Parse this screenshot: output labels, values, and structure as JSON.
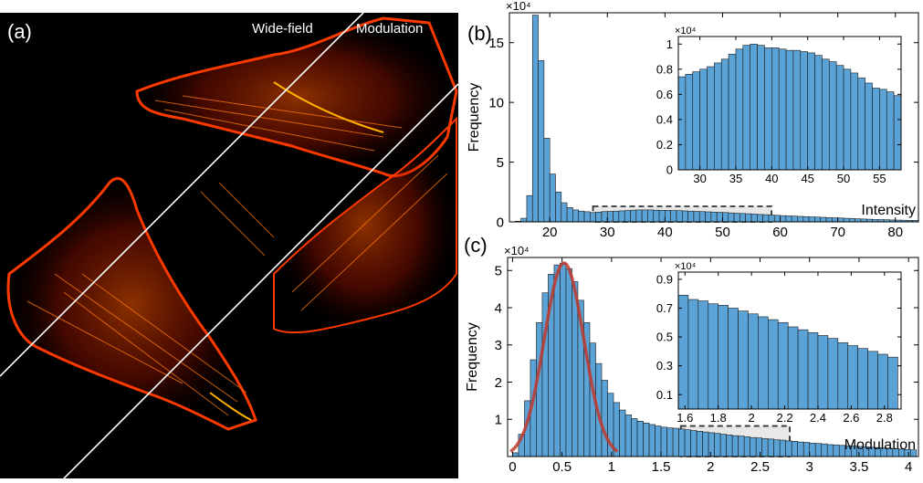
{
  "panels": {
    "a": {
      "label": "(a)",
      "wide_label": "Wide-field",
      "mod_label": "Modulation"
    },
    "b": {
      "label": "(b)"
    },
    "c": {
      "label": "(c)"
    }
  },
  "colors": {
    "bar": "#5ba3d6",
    "bar_edge": "#1a1a1a",
    "fit": "#c0392b",
    "axis": "#000000",
    "box": "#333333",
    "highlight": "#e8e8e8",
    "image_bg": "#000000",
    "cell": "#ff2a00",
    "cell_bright": "#ffb000"
  },
  "chart_data": [
    {
      "id": "b-main",
      "type": "bar",
      "xlabel": "Intensity",
      "ylabel": "Frequency",
      "multiplier": "×10⁴",
      "xlim": [
        13,
        84
      ],
      "ylim": [
        0,
        17.5
      ],
      "xticks": [
        20,
        30,
        40,
        50,
        60,
        70,
        80
      ],
      "yticks": [
        0,
        5,
        10,
        15
      ],
      "bin_width": 1,
      "x": [
        13,
        14,
        15,
        16,
        17,
        18,
        19,
        20,
        21,
        22,
        23,
        24,
        25,
        26,
        27,
        28,
        29,
        30,
        31,
        32,
        33,
        34,
        35,
        36,
        37,
        38,
        39,
        40,
        41,
        42,
        43,
        44,
        45,
        46,
        47,
        48,
        49,
        50,
        51,
        52,
        53,
        54,
        55,
        56,
        57,
        58,
        59,
        60,
        61,
        62,
        63,
        64,
        65,
        66,
        67,
        68,
        69,
        70,
        71,
        72,
        73,
        74,
        75,
        76,
        77,
        78,
        79,
        80,
        81,
        82,
        83
      ],
      "values": [
        0.01,
        0.05,
        0.3,
        2.2,
        17.3,
        13.5,
        7.0,
        4.0,
        2.5,
        1.6,
        1.2,
        1.0,
        0.9,
        0.85,
        0.78,
        0.82,
        0.86,
        0.88,
        0.9,
        0.92,
        0.95,
        0.98,
        1.0,
        1.0,
        1.0,
        0.98,
        0.97,
        0.96,
        0.95,
        0.94,
        0.92,
        0.9,
        0.88,
        0.86,
        0.84,
        0.82,
        0.8,
        0.78,
        0.75,
        0.72,
        0.7,
        0.68,
        0.65,
        0.62,
        0.6,
        0.57,
        0.55,
        0.52,
        0.5,
        0.48,
        0.46,
        0.44,
        0.42,
        0.4,
        0.38,
        0.36,
        0.34,
        0.32,
        0.3,
        0.28,
        0.26,
        0.24,
        0.22,
        0.2,
        0.19,
        0.18,
        0.16,
        0.15,
        0.14,
        0.13,
        0.12
      ],
      "highlight": {
        "x": [
          27.5,
          58.5
        ],
        "y": [
          0,
          1.3
        ]
      }
    },
    {
      "id": "b-inset",
      "type": "bar",
      "xlabel": "",
      "ylabel": "",
      "multiplier": "×10⁴",
      "xlim": [
        27,
        58
      ],
      "ylim": [
        0,
        1.06
      ],
      "xticks": [
        30,
        35,
        40,
        45,
        50,
        55
      ],
      "yticks": [
        0,
        0.2,
        0.4,
        0.6,
        0.8,
        1
      ],
      "bin_width": 1,
      "x": [
        27,
        28,
        29,
        30,
        31,
        32,
        33,
        34,
        35,
        36,
        37,
        38,
        39,
        40,
        41,
        42,
        43,
        44,
        45,
        46,
        47,
        48,
        49,
        50,
        51,
        52,
        53,
        54,
        55,
        56,
        57
      ],
      "values": [
        0.74,
        0.76,
        0.78,
        0.8,
        0.82,
        0.85,
        0.88,
        0.92,
        0.96,
        0.99,
        1.0,
        0.99,
        0.97,
        0.97,
        0.96,
        0.95,
        0.95,
        0.94,
        0.93,
        0.91,
        0.88,
        0.86,
        0.83,
        0.8,
        0.77,
        0.73,
        0.69,
        0.65,
        0.64,
        0.62,
        0.59
      ]
    },
    {
      "id": "c-main",
      "type": "bar",
      "xlabel": "Modulation",
      "ylabel": "Frequency",
      "multiplier": "×10⁴",
      "xlim": [
        -0.05,
        4.1
      ],
      "ylim": [
        0,
        5.35
      ],
      "xticks": [
        0,
        0.5,
        1,
        1.5,
        2,
        2.5,
        3,
        3.5,
        4
      ],
      "yticks": [
        1,
        2,
        3,
        4,
        5
      ],
      "bin_width": 0.06,
      "x": [
        0,
        0.06,
        0.12,
        0.18,
        0.24,
        0.3,
        0.36,
        0.42,
        0.48,
        0.54,
        0.6,
        0.66,
        0.72,
        0.78,
        0.84,
        0.9,
        0.96,
        1.02,
        1.08,
        1.14,
        1.2,
        1.26,
        1.32,
        1.38,
        1.44,
        1.5,
        1.56,
        1.62,
        1.68,
        1.74,
        1.8,
        1.86,
        1.92,
        1.98,
        2.04,
        2.1,
        2.16,
        2.22,
        2.28,
        2.34,
        2.4,
        2.46,
        2.52,
        2.58,
        2.64,
        2.7,
        2.76,
        2.82,
        2.88,
        2.94,
        3.0,
        3.06,
        3.12,
        3.18,
        3.24,
        3.3,
        3.36,
        3.42,
        3.48,
        3.54,
        3.6,
        3.66,
        3.72,
        3.78,
        3.84,
        3.9,
        3.96,
        4.02
      ],
      "values": [
        0.1,
        0.6,
        1.5,
        2.6,
        3.6,
        4.4,
        4.9,
        5.15,
        5.2,
        5.05,
        4.7,
        4.2,
        3.6,
        3.05,
        2.5,
        2.05,
        1.7,
        1.45,
        1.25,
        1.12,
        1.02,
        0.95,
        0.9,
        0.86,
        0.82,
        0.79,
        0.77,
        0.76,
        0.74,
        0.72,
        0.7,
        0.68,
        0.66,
        0.64,
        0.62,
        0.6,
        0.58,
        0.56,
        0.55,
        0.53,
        0.51,
        0.5,
        0.48,
        0.47,
        0.45,
        0.44,
        0.42,
        0.41,
        0.39,
        0.38,
        0.36,
        0.35,
        0.34,
        0.32,
        0.31,
        0.3,
        0.29,
        0.28,
        0.27,
        0.26,
        0.25,
        0.24,
        0.23,
        0.22,
        0.21,
        0.2,
        0.19,
        0.18
      ],
      "fit": {
        "type": "gaussian",
        "amplitude": 5.2,
        "mean": 0.52,
        "sigma": 0.2,
        "range": [
          -0.02,
          1.06
        ]
      },
      "highlight": {
        "x": [
          1.7,
          2.8
        ],
        "y": [
          0,
          0.82
        ]
      }
    },
    {
      "id": "c-inset",
      "type": "bar",
      "xlabel": "",
      "ylabel": "",
      "multiplier": "×10⁴",
      "xlim": [
        1.56,
        2.9
      ],
      "ylim": [
        0,
        0.95
      ],
      "xticks": [
        1.6,
        1.8,
        2,
        2.2,
        2.4,
        2.6,
        2.8
      ],
      "yticks": [
        0.1,
        0.3,
        0.5,
        0.7,
        0.9
      ],
      "bin_width": 0.06,
      "x": [
        1.56,
        1.62,
        1.68,
        1.74,
        1.8,
        1.86,
        1.92,
        1.98,
        2.04,
        2.1,
        2.16,
        2.22,
        2.28,
        2.34,
        2.4,
        2.46,
        2.52,
        2.58,
        2.64,
        2.7,
        2.76,
        2.82
      ],
      "values": [
        0.79,
        0.76,
        0.75,
        0.73,
        0.72,
        0.7,
        0.68,
        0.66,
        0.64,
        0.62,
        0.6,
        0.57,
        0.55,
        0.53,
        0.51,
        0.49,
        0.46,
        0.44,
        0.42,
        0.4,
        0.38,
        0.36
      ]
    }
  ]
}
